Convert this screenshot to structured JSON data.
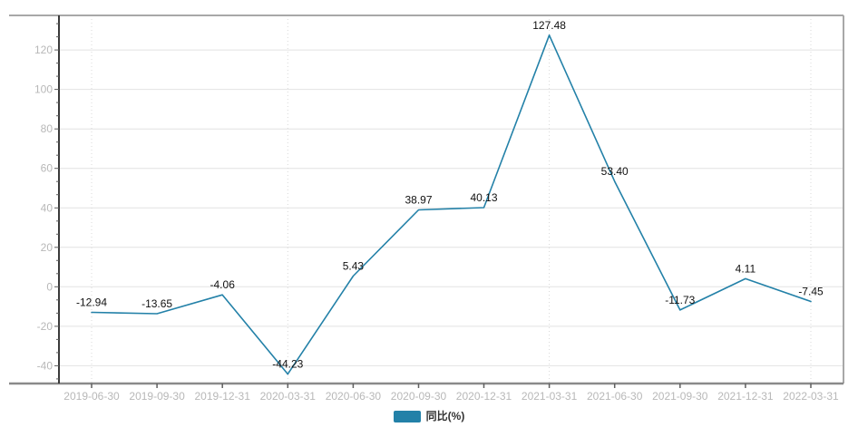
{
  "chart_data": {
    "type": "line",
    "title": "",
    "xlabel": "",
    "ylabel": "",
    "categories": [
      "2019-06-30",
      "2019-09-30",
      "2019-12-31",
      "2020-03-31",
      "2020-06-30",
      "2020-09-30",
      "2020-12-31",
      "2021-03-31",
      "2021-06-30",
      "2021-09-30",
      "2021-12-31",
      "2022-03-31"
    ],
    "series": [
      {
        "name": "同比(%)",
        "color": "#2381a8",
        "values": [
          -12.94,
          -13.65,
          -4.06,
          -44.23,
          5.43,
          38.97,
          40.13,
          127.48,
          53.4,
          -11.73,
          4.11,
          -7.45
        ]
      }
    ],
    "data_labels": [
      "-12.94",
      "-13.65",
      "-4.06",
      "-44.23",
      "5.43",
      "38.97",
      "40.13",
      "127.48",
      "53.40",
      "-11.73",
      "4.11",
      "-7.45"
    ],
    "data_labels_visible": true,
    "data_label_position": "top",
    "ylim": [
      -49,
      137.5
    ],
    "y_ticks": [
      -40,
      -20,
      0,
      20,
      40,
      60,
      80,
      100,
      120
    ],
    "grid": "horizontal",
    "x_dotted_gridline_indices": [
      0,
      3,
      7,
      11
    ],
    "legend": {
      "position": "bottom",
      "items": [
        "同比(%)"
      ]
    },
    "colors": {
      "series": "#2381a8",
      "grid_line": "#e2e2e2",
      "dotted_line": "#d8d8d8",
      "y_axis_line": "#3a3a3a",
      "x_axis_line": "#8a8a8a",
      "frame_line": "#a8a8a8",
      "axis_tick": "#5f5f5f",
      "tick_label": "#b8b8b8",
      "data_label": "#111111",
      "legend_text": "#333333",
      "background": "#ffffff"
    }
  }
}
